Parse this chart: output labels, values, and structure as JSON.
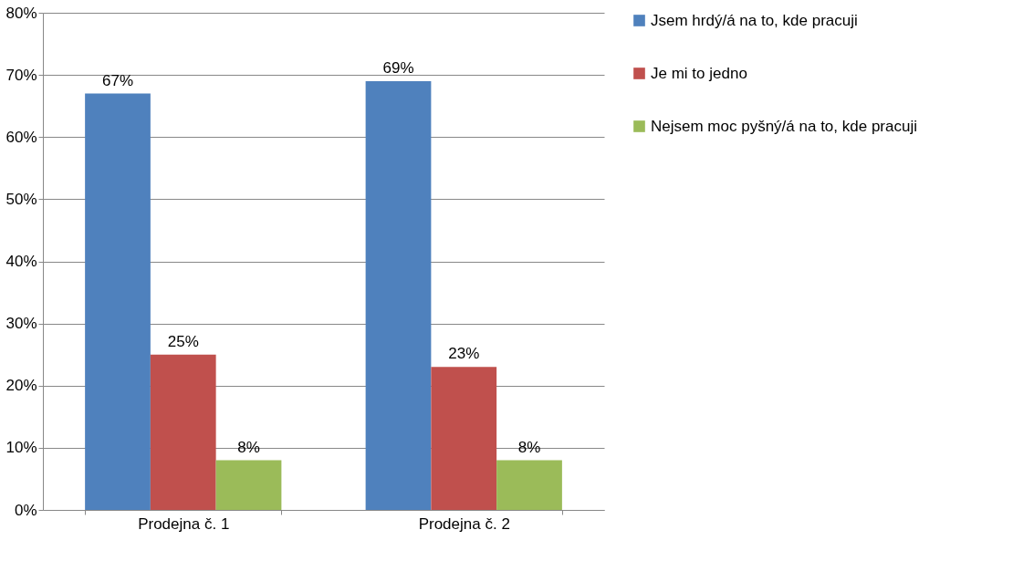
{
  "chart_data": {
    "type": "bar",
    "categories": [
      "Prodejna č. 1",
      "Prodejna č. 2"
    ],
    "series": [
      {
        "name": "Jsem hrdý/á na to, kde pracuji",
        "color": "#4f81bd",
        "values": [
          67,
          69
        ],
        "value_labels": [
          "67%",
          "69%"
        ]
      },
      {
        "name": "Je mi to jedno",
        "color": "#c0504d",
        "values": [
          25,
          23
        ],
        "value_labels": [
          "25%",
          "23%"
        ]
      },
      {
        "name": "Nejsem moc pyšný/á na to, kde pracuji",
        "color": "#9bbb59",
        "values": [
          8,
          8
        ],
        "value_labels": [
          "8%",
          "8%"
        ]
      }
    ],
    "ylim": [
      0,
      80
    ],
    "yticks": [
      {
        "value": 0,
        "label": "0%"
      },
      {
        "value": 10,
        "label": "10%"
      },
      {
        "value": 20,
        "label": "20%"
      },
      {
        "value": 30,
        "label": "30%"
      },
      {
        "value": 40,
        "label": "40%"
      },
      {
        "value": 50,
        "label": "50%"
      },
      {
        "value": 60,
        "label": "60%"
      },
      {
        "value": 70,
        "label": "70%"
      },
      {
        "value": 80,
        "label": "80%"
      }
    ],
    "grid": "y",
    "legend": "right"
  }
}
